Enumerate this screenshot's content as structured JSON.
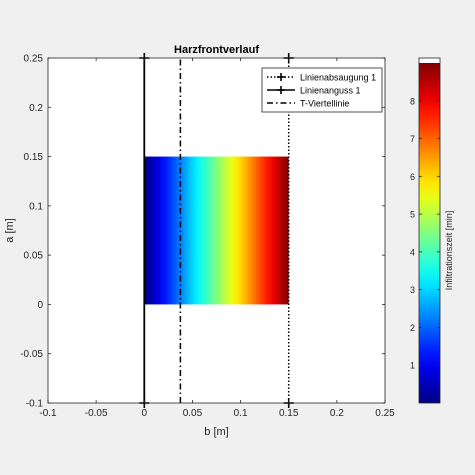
{
  "chart_data": {
    "type": "heatmap",
    "title": "Harzfrontverlauf",
    "xlabel": "b [m]",
    "ylabel": "a [m]",
    "xlim": [
      -0.1,
      0.25
    ],
    "ylim": [
      -0.1,
      0.25
    ],
    "xticks": [
      -0.1,
      -0.05,
      0,
      0.05,
      0.1,
      0.15,
      0.2,
      0.25
    ],
    "xtick_labels": [
      "-0.1",
      "-0.05",
      "0",
      "0.05",
      "0.1",
      "0.15",
      "0.2",
      "0.25"
    ],
    "yticks": [
      -0.1,
      -0.05,
      0,
      0.05,
      0.1,
      0.15,
      0.2,
      0.25
    ],
    "ytick_labels": [
      "-0.1",
      "-0.05",
      "0",
      "0.05",
      "0.1",
      "0.15",
      "0.2",
      "0.25"
    ],
    "grid": false,
    "colormap": "jet",
    "field": {
      "x_range": [
        0,
        0.15
      ],
      "y_range": [
        0,
        0.15
      ],
      "value_at_x_start": 0,
      "value_at_x_end": 9,
      "gradient_direction": "x"
    },
    "lines": [
      {
        "name": "Linienabsaugung 1",
        "style": "dotted",
        "marker": "plus",
        "x": 0.15,
        "y_range": [
          -0.1,
          0.25
        ]
      },
      {
        "name": "Linienanguss 1",
        "style": "solid",
        "marker": "plus",
        "x": 0,
        "y_range": [
          -0.1,
          0.25
        ]
      },
      {
        "name": "T-Viertellinie",
        "style": "dashdot",
        "marker": "none",
        "x": 0.0375,
        "y_range": [
          -0.1,
          0.25
        ]
      }
    ],
    "legend_position": "top-right",
    "colorbar": {
      "label": "Infiltrationszeit [min]",
      "range": [
        0,
        9
      ],
      "ticks": [
        1,
        2,
        3,
        4,
        5,
        6,
        7,
        8
      ],
      "tick_labels": [
        "1",
        "2",
        "3",
        "4",
        "5",
        "6",
        "7",
        "8"
      ],
      "top_color": "#ffffff"
    }
  }
}
